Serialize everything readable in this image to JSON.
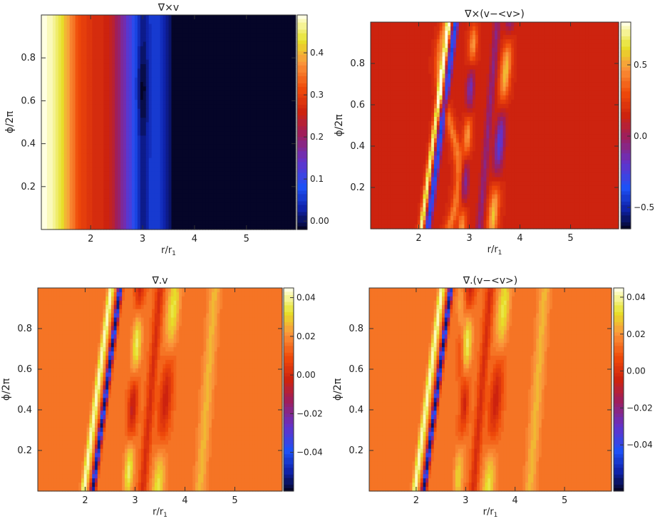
{
  "chart_data": [
    {
      "type": "heatmap",
      "title": "∇×v",
      "xlabel": "r/r₁",
      "ylabel": "ϕ/2π",
      "xlim": [
        1.05,
        5.95
      ],
      "ylim": [
        0.0,
        1.0
      ],
      "xticks": [
        2,
        3,
        4,
        5
      ],
      "yticks": [
        0.2,
        0.4,
        0.6,
        0.8
      ],
      "colorbar": {
        "min": -0.02,
        "max": 0.49,
        "ticks": [
          0.0,
          0.1,
          0.2,
          0.3,
          0.4
        ]
      },
      "pattern": "radial gradient with vortex near r=3"
    },
    {
      "type": "heatmap",
      "title": "∇×(v−<v>)",
      "xlabel": "r/r₁",
      "ylabel": "ϕ/2π",
      "xlim": [
        1.05,
        5.95
      ],
      "ylim": [
        0.0,
        1.0
      ],
      "xticks": [
        2,
        3,
        4,
        5
      ],
      "yticks": [
        0.2,
        0.4,
        0.6,
        0.8
      ],
      "colorbar": {
        "min": -0.65,
        "max": 0.8,
        "ticks": [
          -0.5,
          0.0,
          0.5
        ]
      },
      "pattern": "spiral wave bands around r=2-4"
    },
    {
      "type": "heatmap",
      "title": "∇.v",
      "xlabel": "r/r₁",
      "ylabel": "ϕ/2π",
      "xlim": [
        1.05,
        5.95
      ],
      "ylim": [
        0.0,
        1.0
      ],
      "xticks": [
        2,
        3,
        4,
        5
      ],
      "yticks": [
        0.2,
        0.4,
        0.6,
        0.8
      ],
      "colorbar": {
        "min": -0.06,
        "max": 0.045,
        "ticks": [
          -0.04,
          -0.02,
          0.0,
          0.02,
          0.04
        ]
      },
      "pattern": "spiral wave bands around r=2-4"
    },
    {
      "type": "heatmap",
      "title": "∇.(v−<v>)",
      "xlabel": "r/r₁",
      "ylabel": "ϕ/2π",
      "xlim": [
        1.05,
        5.95
      ],
      "ylim": [
        0.0,
        1.0
      ],
      "xticks": [
        2,
        3,
        4,
        5
      ],
      "yticks": [
        0.2,
        0.4,
        0.6,
        0.8
      ],
      "colorbar": {
        "min": -0.065,
        "max": 0.045,
        "ticks": [
          -0.04,
          -0.02,
          0.0,
          0.02,
          0.04
        ]
      },
      "pattern": "spiral wave bands around r=2-4"
    }
  ]
}
